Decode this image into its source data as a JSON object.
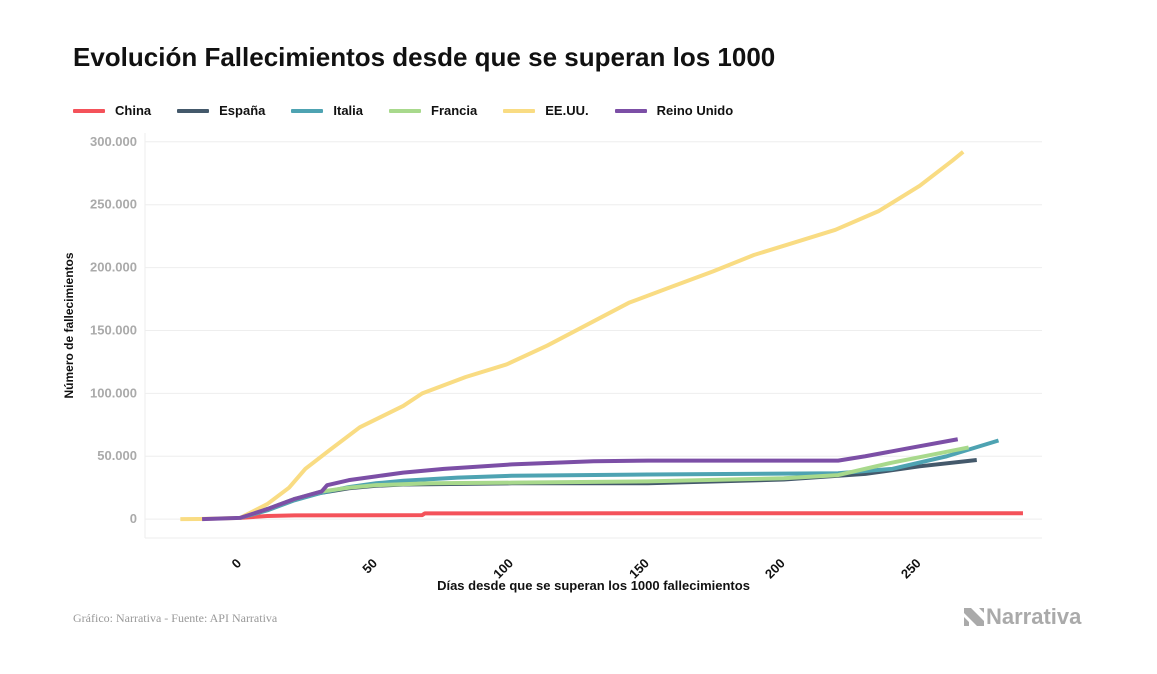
{
  "chart_data": {
    "type": "line",
    "title": "Evolución Fallecimientos desde que se superan los 1000",
    "xlabel": "Días desde que se superan los 1000 fallecimientos",
    "ylabel": "Número de fallecimientos",
    "xlim": [
      -35,
      295
    ],
    "ylim": [
      -15000,
      307000
    ],
    "x_ticks": [
      0,
      50,
      100,
      150,
      200,
      250
    ],
    "y_ticks": [
      0,
      50000,
      100000,
      150000,
      200000,
      250000,
      300000
    ],
    "y_tick_labels": [
      "0",
      "50.000",
      "100.000",
      "150.000",
      "200.000",
      "250.000",
      "300.000"
    ],
    "grid": true,
    "legend_position": "top-left",
    "series": [
      {
        "name": "China",
        "color": "#f4525a",
        "points": [
          [
            0,
            1000
          ],
          [
            10,
            2500
          ],
          [
            20,
            3000
          ],
          [
            67,
            3200
          ],
          [
            68,
            4600
          ],
          [
            288,
            4700
          ]
        ]
      },
      {
        "name": "España",
        "color": "#44596b",
        "points": [
          [
            0,
            1000
          ],
          [
            10,
            8000
          ],
          [
            20,
            16000
          ],
          [
            30,
            21000
          ],
          [
            40,
            24500
          ],
          [
            50,
            26500
          ],
          [
            60,
            27500
          ],
          [
            100,
            28500
          ],
          [
            150,
            28500
          ],
          [
            200,
            31500
          ],
          [
            230,
            36000
          ],
          [
            250,
            42000
          ],
          [
            271,
            47000
          ]
        ]
      },
      {
        "name": "Italia",
        "color": "#4ea3b2",
        "points": [
          [
            0,
            1000
          ],
          [
            10,
            7000
          ],
          [
            20,
            15000
          ],
          [
            30,
            21000
          ],
          [
            40,
            25500
          ],
          [
            50,
            28500
          ],
          [
            60,
            30500
          ],
          [
            80,
            33000
          ],
          [
            100,
            34500
          ],
          [
            150,
            35500
          ],
          [
            220,
            36500
          ],
          [
            240,
            40000
          ],
          [
            260,
            50000
          ],
          [
            279,
            62500
          ]
        ]
      },
      {
        "name": "Francia",
        "color": "#a8d98c",
        "points": [
          [
            0,
            1000
          ],
          [
            10,
            8000
          ],
          [
            20,
            16000
          ],
          [
            30,
            22000
          ],
          [
            40,
            25000
          ],
          [
            50,
            27000
          ],
          [
            70,
            28500
          ],
          [
            100,
            29000
          ],
          [
            150,
            30000
          ],
          [
            200,
            32500
          ],
          [
            220,
            35000
          ],
          [
            240,
            45000
          ],
          [
            268,
            57000
          ]
        ]
      },
      {
        "name": "EE.UU.",
        "color": "#f9dc83",
        "points": [
          [
            -22,
            0
          ],
          [
            -15,
            100
          ],
          [
            0,
            1000
          ],
          [
            10,
            12000
          ],
          [
            18,
            25000
          ],
          [
            24,
            40000
          ],
          [
            33,
            55000
          ],
          [
            44,
            73000
          ],
          [
            60,
            90000
          ],
          [
            67,
            100000
          ],
          [
            83,
            113000
          ],
          [
            98,
            123000
          ],
          [
            113,
            138000
          ],
          [
            128,
            155000
          ],
          [
            143,
            172000
          ],
          [
            159,
            185000
          ],
          [
            174,
            197000
          ],
          [
            189,
            210000
          ],
          [
            204,
            220000
          ],
          [
            219,
            230000
          ],
          [
            235,
            245000
          ],
          [
            250,
            265000
          ],
          [
            262,
            285000
          ],
          [
            266,
            292000
          ]
        ]
      },
      {
        "name": "Reino Unido",
        "color": "#7c4fa6",
        "points": [
          [
            -14,
            0
          ],
          [
            0,
            1000
          ],
          [
            10,
            8000
          ],
          [
            20,
            16000
          ],
          [
            30,
            22000
          ],
          [
            32,
            27000
          ],
          [
            40,
            31000
          ],
          [
            50,
            34000
          ],
          [
            60,
            37000
          ],
          [
            75,
            40000
          ],
          [
            100,
            43500
          ],
          [
            130,
            46000
          ],
          [
            150,
            46500
          ],
          [
            220,
            46500
          ],
          [
            230,
            50000
          ],
          [
            245,
            56000
          ],
          [
            264,
            63500
          ]
        ]
      }
    ]
  },
  "footer": {
    "source": "Gráfico: Narrativa - Fuente: API Narrativa",
    "logo": "Narrativa"
  }
}
